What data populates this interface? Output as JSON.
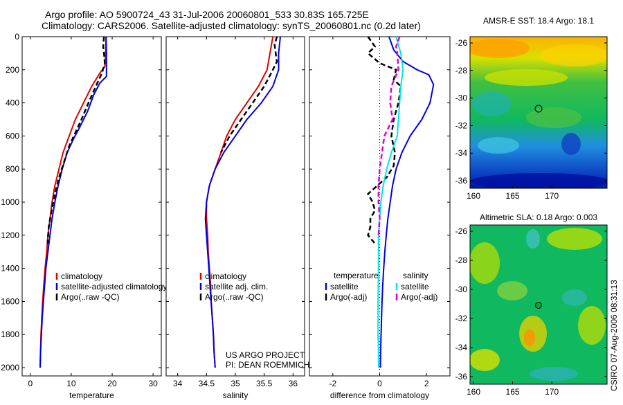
{
  "header": {
    "line1": "Argo profile: AO 5900724_43 31-Jul-2006 20060801_533 30.83S 165.725E",
    "line2": "Climatology: CARS2006. Satellite-adjusted climatology: synTS_20060801.nc (0.2d later)"
  },
  "colors": {
    "red": "#dd0000",
    "blue": "#0000dd",
    "black": "#000000",
    "cyan": "#00e5e5",
    "magenta": "#dd00dd"
  },
  "chart_data": [
    {
      "type": "line",
      "xlabel": "temperature",
      "xlim": [
        -2,
        32
      ],
      "xticks": [
        0,
        10,
        20,
        30
      ],
      "ylim": [
        2050,
        0
      ],
      "yticks": [
        0,
        200,
        400,
        600,
        800,
        1000,
        1200,
        1400,
        1600,
        1800,
        2000
      ],
      "legend": [
        "climatology",
        "satellite-adjusted climatology",
        "Argo(..raw -QC)"
      ],
      "series": [
        {
          "name": "climatology",
          "color": "#dd0000",
          "dash": false,
          "points": [
            [
              18.5,
              0
            ],
            [
              18.4,
              100
            ],
            [
              18.2,
              180
            ],
            [
              17.0,
              220
            ],
            [
              15.0,
              300
            ],
            [
              13.0,
              400
            ],
            [
              11.0,
              500
            ],
            [
              9.5,
              600
            ],
            [
              8.0,
              700
            ],
            [
              7.0,
              800
            ],
            [
              6.0,
              900
            ],
            [
              5.3,
              1000
            ],
            [
              4.8,
              1100
            ],
            [
              4.3,
              1200
            ],
            [
              4.0,
              1300
            ],
            [
              3.6,
              1400
            ],
            [
              3.3,
              1500
            ],
            [
              3.0,
              1600
            ],
            [
              2.8,
              1700
            ],
            [
              2.6,
              1800
            ],
            [
              2.5,
              1900
            ],
            [
              2.4,
              2000
            ]
          ]
        },
        {
          "name": "satellite-adjusted climatology",
          "color": "#0000dd",
          "dash": false,
          "points": [
            [
              18.5,
              0
            ],
            [
              18.6,
              100
            ],
            [
              18.6,
              200
            ],
            [
              18.6,
              240
            ],
            [
              17.0,
              280
            ],
            [
              15.5,
              350
            ],
            [
              14.0,
              450
            ],
            [
              12.0,
              550
            ],
            [
              10.5,
              620
            ],
            [
              9.0,
              700
            ],
            [
              7.8,
              800
            ],
            [
              6.8,
              900
            ],
            [
              6.0,
              1000
            ],
            [
              5.3,
              1100
            ],
            [
              4.8,
              1200
            ],
            [
              4.3,
              1300
            ],
            [
              3.8,
              1400
            ],
            [
              3.5,
              1500
            ],
            [
              3.2,
              1600
            ],
            [
              2.9,
              1700
            ],
            [
              2.7,
              1800
            ],
            [
              2.5,
              1900
            ],
            [
              2.4,
              2000
            ]
          ]
        },
        {
          "name": "Argo(..raw -QC)",
          "color": "#000000",
          "dash": true,
          "points": [
            [
              18.0,
              0
            ],
            [
              17.8,
              60
            ],
            [
              18.0,
              100
            ],
            [
              18.2,
              160
            ],
            [
              17.5,
              220
            ],
            [
              16.0,
              300
            ],
            [
              14.2,
              400
            ],
            [
              12.5,
              500
            ],
            [
              11.0,
              580
            ],
            [
              9.5,
              660
            ],
            [
              8.2,
              760
            ],
            [
              7.0,
              850
            ],
            [
              6.0,
              950
            ],
            [
              5.2,
              1050
            ],
            [
              4.5,
              1150
            ],
            [
              4.2,
              1250
            ]
          ]
        }
      ]
    },
    {
      "type": "line",
      "xlabel": "salinity",
      "xlim": [
        33.8,
        36.2
      ],
      "xticks": [
        34,
        34.5,
        35,
        35.5,
        36
      ],
      "ylim": [
        2050,
        0
      ],
      "legend": [
        "climatology",
        "satellite adj. clim.",
        "Argo(..raw -QC)"
      ],
      "series": [
        {
          "name": "climatology",
          "color": "#dd0000",
          "dash": false,
          "points": [
            [
              35.65,
              0
            ],
            [
              35.6,
              100
            ],
            [
              35.55,
              200
            ],
            [
              35.4,
              300
            ],
            [
              35.2,
              400
            ],
            [
              35.0,
              500
            ],
            [
              34.85,
              600
            ],
            [
              34.75,
              700
            ],
            [
              34.65,
              800
            ],
            [
              34.55,
              900
            ],
            [
              34.5,
              1000
            ],
            [
              34.5,
              1100
            ],
            [
              34.52,
              1200
            ],
            [
              34.53,
              1300
            ],
            [
              34.55,
              1400
            ],
            [
              34.57,
              1500
            ],
            [
              34.58,
              1600
            ],
            [
              34.6,
              1700
            ],
            [
              34.62,
              1800
            ],
            [
              34.63,
              1900
            ],
            [
              34.65,
              2000
            ]
          ]
        },
        {
          "name": "satellite adj. clim.",
          "color": "#0000dd",
          "dash": false,
          "points": [
            [
              35.78,
              0
            ],
            [
              35.75,
              100
            ],
            [
              35.75,
              200
            ],
            [
              35.65,
              300
            ],
            [
              35.45,
              400
            ],
            [
              35.2,
              500
            ],
            [
              35.0,
              600
            ],
            [
              34.8,
              700
            ],
            [
              34.65,
              800
            ],
            [
              34.55,
              900
            ],
            [
              34.5,
              1000
            ],
            [
              34.48,
              1100
            ],
            [
              34.5,
              1200
            ],
            [
              34.52,
              1300
            ],
            [
              34.54,
              1400
            ],
            [
              34.56,
              1500
            ],
            [
              34.58,
              1600
            ],
            [
              34.6,
              1700
            ],
            [
              34.62,
              1800
            ],
            [
              34.63,
              1900
            ],
            [
              34.65,
              2000
            ]
          ]
        },
        {
          "name": "Argo(..raw -QC)",
          "color": "#000000",
          "dash": true,
          "points": [
            [
              35.72,
              0
            ],
            [
              35.68,
              50
            ],
            [
              35.7,
              100
            ],
            [
              35.72,
              150
            ],
            [
              35.65,
              200
            ],
            [
              35.5,
              300
            ],
            [
              35.3,
              400
            ],
            [
              35.1,
              500
            ],
            [
              34.9,
              600
            ],
            [
              34.75,
              700
            ]
          ]
        }
      ]
    },
    {
      "type": "line",
      "xlabel": "difference from climatology",
      "xlim": [
        -3,
        3
      ],
      "xticks": [
        -2,
        0,
        2
      ],
      "ylim": [
        2050,
        0
      ],
      "legend_columns": [
        "temperature",
        "salinity"
      ],
      "legend": [
        "satellite",
        "Argo(-adj)",
        "satellite",
        "Argo(-adj)"
      ],
      "series": [
        {
          "name": "satellite",
          "color": "#0000dd",
          "dash": false,
          "points": [
            [
              0.4,
              0
            ],
            [
              0.6,
              80
            ],
            [
              1.0,
              150
            ],
            [
              1.6,
              200
            ],
            [
              2.1,
              230
            ],
            [
              2.3,
              290
            ],
            [
              2.15,
              400
            ],
            [
              1.8,
              500
            ],
            [
              1.3,
              600
            ],
            [
              0.95,
              700
            ],
            [
              0.7,
              800
            ],
            [
              0.55,
              900
            ],
            [
              0.45,
              1000
            ],
            [
              0.35,
              1100
            ],
            [
              0.28,
              1200
            ],
            [
              0.22,
              1300
            ],
            [
              0.17,
              1400
            ],
            [
              0.13,
              1500
            ],
            [
              0.1,
              1600
            ],
            [
              0.08,
              1700
            ],
            [
              0.06,
              1800
            ],
            [
              0.04,
              1900
            ],
            [
              0.03,
              2000
            ]
          ]
        },
        {
          "name": "Argo(-adj)",
          "color": "#000000",
          "dash": true,
          "points": [
            [
              -0.5,
              0
            ],
            [
              -0.2,
              60
            ],
            [
              -0.5,
              100
            ],
            [
              0.0,
              160
            ],
            [
              0.7,
              200
            ],
            [
              0.6,
              260
            ],
            [
              0.9,
              300
            ],
            [
              0.8,
              400
            ],
            [
              0.6,
              500
            ],
            [
              0.5,
              600
            ],
            [
              0.65,
              700
            ],
            [
              0.6,
              780
            ],
            [
              0.3,
              850
            ],
            [
              -0.1,
              900
            ],
            [
              -0.5,
              950
            ],
            [
              -0.3,
              1000
            ],
            [
              -0.2,
              1050
            ],
            [
              -0.4,
              1100
            ],
            [
              -0.4,
              1150
            ],
            [
              -0.5,
              1200
            ],
            [
              -0.2,
              1250
            ]
          ]
        },
        {
          "name": "satellite",
          "color": "#00e5e5",
          "dash": false,
          "points": [
            [
              0.7,
              0
            ],
            [
              0.9,
              100
            ],
            [
              1.0,
              200
            ],
            [
              0.9,
              300
            ],
            [
              0.85,
              400
            ],
            [
              0.8,
              500
            ],
            [
              0.75,
              600
            ],
            [
              0.5,
              700
            ],
            [
              0.3,
              800
            ],
            [
              0.15,
              900
            ],
            [
              0.05,
              1000
            ],
            [
              0.0,
              1100
            ],
            [
              -0.05,
              1200
            ],
            [
              -0.05,
              1400
            ],
            [
              -0.07,
              1600
            ],
            [
              -0.07,
              1800
            ],
            [
              -0.05,
              1900
            ],
            [
              -0.05,
              2000
            ]
          ]
        },
        {
          "name": "Argo(-adj)",
          "color": "#dd00dd",
          "dash": true,
          "points": [
            [
              0.85,
              0
            ],
            [
              0.7,
              60
            ],
            [
              0.75,
              100
            ],
            [
              0.8,
              200
            ],
            [
              0.5,
              300
            ],
            [
              0.45,
              400
            ],
            [
              0.55,
              500
            ],
            [
              0.2,
              600
            ],
            [
              0.1,
              700
            ],
            [
              0.0,
              800
            ],
            [
              -0.05,
              900
            ],
            [
              -0.05,
              1000
            ],
            [
              0.0,
              1100
            ],
            [
              -0.05,
              1200
            ]
          ]
        }
      ]
    }
  ],
  "maps": [
    {
      "title": "AMSR-E SST: 18.4 Argo: 18.1",
      "xticks": [
        "160",
        "165",
        "170"
      ],
      "yticks": [
        "-26",
        "-28",
        "-30",
        "-32",
        "-34",
        "-36"
      ]
    },
    {
      "title": "Altimetric SLA: 0.18 Argo: 0.003",
      "xticks": [
        "160",
        "165",
        "170"
      ],
      "yticks": [
        "-26",
        "-28",
        "-30",
        "-32",
        "-34",
        "-36"
      ]
    }
  ],
  "project": {
    "line1": "US ARGO PROJECT",
    "line2": "PI: DEAN ROEMMICH"
  },
  "side_label": "CSIRO 07-Aug-2006 08:31:13"
}
